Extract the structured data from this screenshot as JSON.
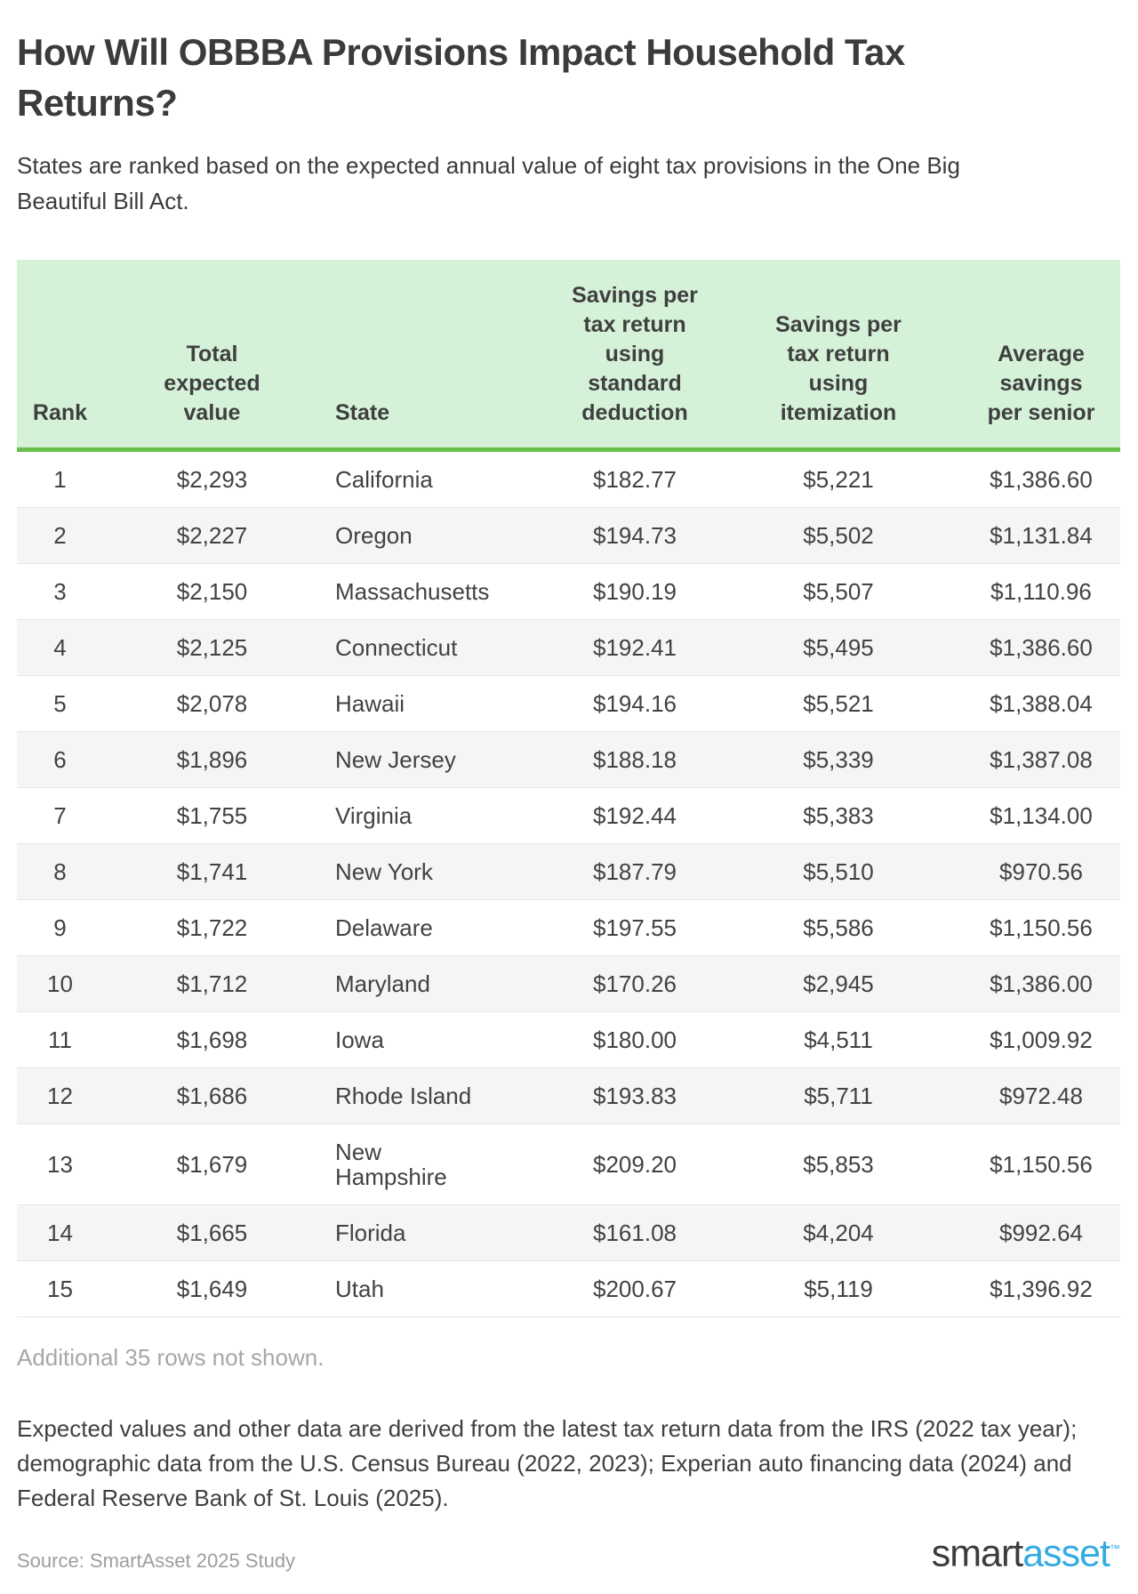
{
  "page": {
    "title": "How Will OBBBA Provisions Impact Household Tax Returns?",
    "subtitle": "States are ranked based on the expected annual value of eight tax provisions in the One Big Beautiful Bill Act.",
    "truncation_note": "Additional 35 rows not shown.",
    "methodology": "Expected values and other data are derived from the latest tax return data from the IRS (2022 tax year); demographic data from the U.S. Census Bureau (2022, 2023); Experian auto financing data (2024) and Federal Reserve Bank of St. Louis (2025).",
    "source": "Source: SmartAsset 2025 Study",
    "logo": {
      "first": "smart",
      "second": "asset",
      "tm": "™"
    }
  },
  "table": {
    "headers": [
      {
        "label": "Rank",
        "display": "Rank"
      },
      {
        "label": "Total expected value",
        "display": "Total\nexpected\nvalue"
      },
      {
        "label": "State",
        "display": "State"
      },
      {
        "label": "Savings per tax return using standard deduction",
        "display": "Savings per\ntax return\nusing\nstandard\ndeduction"
      },
      {
        "label": "Savings per tax return using itemization",
        "display": "Savings per\ntax return\nusing\nitemization"
      },
      {
        "label": "Average savings per senior",
        "display": "Average\nsavings\nper senior"
      }
    ]
  },
  "chart_data": {
    "type": "table",
    "title": "How Will OBBBA Provisions Impact Household Tax Returns?",
    "subtitle": "States are ranked based on the expected annual value of eight tax provisions in the One Big Beautiful Bill Act.",
    "columns": [
      "Rank",
      "Total expected value",
      "State",
      "Savings per tax return using standard deduction",
      "Savings per tax return using itemization",
      "Average savings per senior"
    ],
    "rows": [
      [
        "1",
        "$2,293",
        "California",
        "$182.77",
        "$5,221",
        "$1,386.60"
      ],
      [
        "2",
        "$2,227",
        "Oregon",
        "$194.73",
        "$5,502",
        "$1,131.84"
      ],
      [
        "3",
        "$2,150",
        "Massachusetts",
        "$190.19",
        "$5,507",
        "$1,110.96"
      ],
      [
        "4",
        "$2,125",
        "Connecticut",
        "$192.41",
        "$5,495",
        "$1,386.60"
      ],
      [
        "5",
        "$2,078",
        "Hawaii",
        "$194.16",
        "$5,521",
        "$1,388.04"
      ],
      [
        "6",
        "$1,896",
        "New Jersey",
        "$188.18",
        "$5,339",
        "$1,387.08"
      ],
      [
        "7",
        "$1,755",
        "Virginia",
        "$192.44",
        "$5,383",
        "$1,134.00"
      ],
      [
        "8",
        "$1,741",
        "New York",
        "$187.79",
        "$5,510",
        "$970.56"
      ],
      [
        "9",
        "$1,722",
        "Delaware",
        "$197.55",
        "$5,586",
        "$1,150.56"
      ],
      [
        "10",
        "$1,712",
        "Maryland",
        "$170.26",
        "$2,945",
        "$1,386.00"
      ],
      [
        "11",
        "$1,698",
        "Iowa",
        "$180.00",
        "$4,511",
        "$1,009.92"
      ],
      [
        "12",
        "$1,686",
        "Rhode Island",
        "$193.83",
        "$5,711",
        "$972.48"
      ],
      [
        "13",
        "$1,679",
        "New Hampshire",
        "$209.20",
        "$5,853",
        "$1,150.56"
      ],
      [
        "14",
        "$1,665",
        "Florida",
        "$161.08",
        "$4,204",
        "$992.64"
      ],
      [
        "15",
        "$1,649",
        "Utah",
        "$200.67",
        "$5,119",
        "$1,396.92"
      ]
    ],
    "notes": {
      "rows_not_shown": 35,
      "legend_position": "none",
      "grid": "row-striping"
    }
  },
  "colors": {
    "header_bg": "#d5f2d8",
    "header_border": "#68c04b",
    "row_stripe": "#f5f5f5",
    "row_divider": "#e7e7e7",
    "text": "#424242",
    "heading": "#3b3b3b",
    "muted": "#a7a7a7",
    "source": "#9e9e9e",
    "logo_dark": "#3c3c3c",
    "logo_blue": "#35abe2"
  }
}
